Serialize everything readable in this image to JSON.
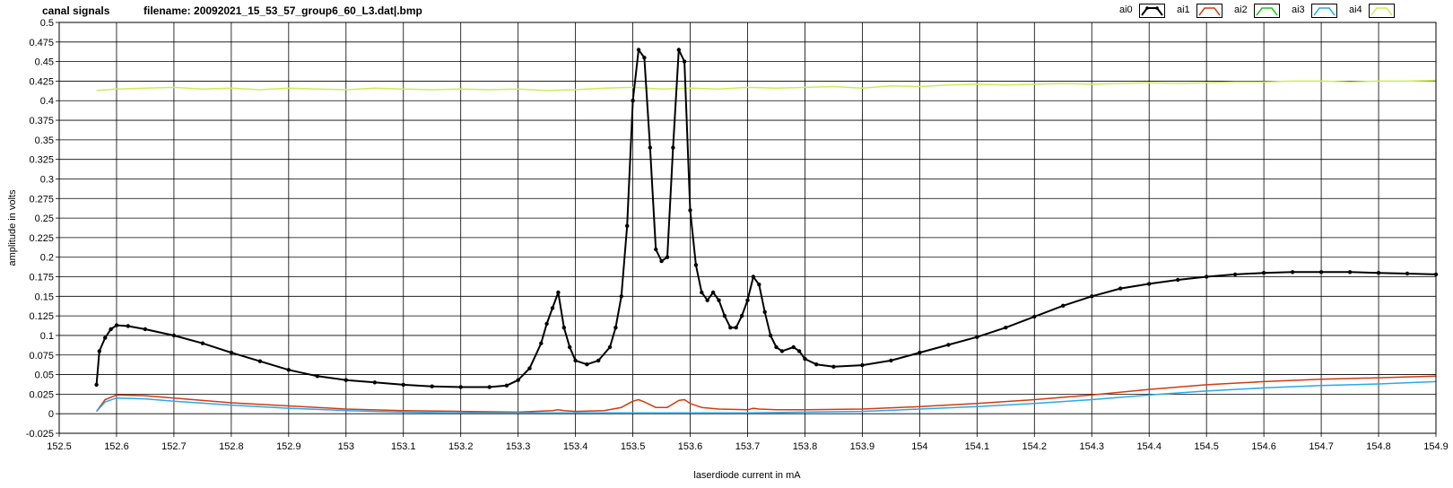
{
  "header": {
    "title": "canal signals",
    "filename": "filename: 20092021_15_53_57_group6_60_L3.dat|.bmp"
  },
  "legend": [
    {
      "name": "ai0",
      "color": "#000000",
      "marker": true
    },
    {
      "name": "ai1",
      "color": "#d03c10",
      "marker": false
    },
    {
      "name": "ai2",
      "color": "#22c020",
      "marker": false
    },
    {
      "name": "ai3",
      "color": "#2aa8e8",
      "marker": false
    },
    {
      "name": "ai4",
      "color": "#c8ee5a",
      "marker": false
    }
  ],
  "chart_data": {
    "type": "line",
    "title": "",
    "xlabel": "laserdiode current in mA",
    "ylabel": "amplitude in volts",
    "xlim": [
      152.5,
      154.9
    ],
    "ylim": [
      -0.025,
      0.5
    ],
    "xticks": [
      "152.5",
      "152.6",
      "152.7",
      "152.8",
      "152.9",
      "153",
      "153.1",
      "153.2",
      "153.3",
      "153.4",
      "153.5",
      "153.6",
      "153.7",
      "153.8",
      "153.9",
      "154",
      "154.1",
      "154.2",
      "154.3",
      "154.4",
      "154.5",
      "154.6",
      "154.7",
      "154.8",
      "154.9"
    ],
    "yticks": [
      "0.5",
      "0.475",
      "0.45",
      "0.425",
      "0.4",
      "0.375",
      "0.35",
      "0.325",
      "0.3",
      "0.275",
      "0.25",
      "0.225",
      "0.2",
      "0.175",
      "0.15",
      "0.125",
      "0.1",
      "0.075",
      "0.05",
      "0.025",
      "0",
      "-0.025"
    ],
    "grid": true,
    "series": [
      {
        "name": "ai0",
        "color": "#000000",
        "marker": true,
        "x": [
          152.565,
          152.57,
          152.58,
          152.59,
          152.6,
          152.62,
          152.65,
          152.7,
          152.75,
          152.8,
          152.85,
          152.9,
          152.95,
          153.0,
          153.05,
          153.1,
          153.15,
          153.2,
          153.25,
          153.28,
          153.3,
          153.32,
          153.34,
          153.35,
          153.36,
          153.37,
          153.38,
          153.39,
          153.4,
          153.42,
          153.44,
          153.46,
          153.47,
          153.48,
          153.49,
          153.5,
          153.51,
          153.52,
          153.53,
          153.54,
          153.55,
          153.56,
          153.57,
          153.58,
          153.59,
          153.6,
          153.61,
          153.62,
          153.63,
          153.64,
          153.65,
          153.66,
          153.67,
          153.68,
          153.69,
          153.7,
          153.71,
          153.72,
          153.73,
          153.74,
          153.75,
          153.76,
          153.78,
          153.79,
          153.8,
          153.82,
          153.85,
          153.9,
          153.95,
          154.0,
          154.05,
          154.1,
          154.15,
          154.2,
          154.25,
          154.3,
          154.35,
          154.4,
          154.45,
          154.5,
          154.55,
          154.6,
          154.65,
          154.7,
          154.75,
          154.8,
          154.85,
          154.9
        ],
        "y": [
          0.037,
          0.08,
          0.097,
          0.108,
          0.113,
          0.112,
          0.108,
          0.1,
          0.09,
          0.078,
          0.067,
          0.056,
          0.048,
          0.043,
          0.04,
          0.037,
          0.035,
          0.034,
          0.034,
          0.036,
          0.043,
          0.058,
          0.09,
          0.115,
          0.135,
          0.155,
          0.11,
          0.085,
          0.068,
          0.063,
          0.068,
          0.085,
          0.11,
          0.15,
          0.24,
          0.4,
          0.465,
          0.455,
          0.34,
          0.21,
          0.195,
          0.2,
          0.34,
          0.465,
          0.45,
          0.26,
          0.19,
          0.155,
          0.145,
          0.155,
          0.145,
          0.125,
          0.11,
          0.11,
          0.125,
          0.145,
          0.175,
          0.165,
          0.13,
          0.1,
          0.085,
          0.08,
          0.085,
          0.08,
          0.07,
          0.063,
          0.06,
          0.062,
          0.068,
          0.078,
          0.088,
          0.098,
          0.11,
          0.124,
          0.138,
          0.15,
          0.16,
          0.166,
          0.171,
          0.175,
          0.178,
          0.18,
          0.181,
          0.181,
          0.181,
          0.18,
          0.179,
          0.178
        ]
      },
      {
        "name": "ai1",
        "color": "#d03c10",
        "marker": false,
        "x": [
          152.565,
          152.58,
          152.6,
          152.65,
          152.7,
          152.8,
          152.9,
          153.0,
          153.1,
          153.2,
          153.3,
          153.36,
          153.37,
          153.38,
          153.4,
          153.45,
          153.48,
          153.5,
          153.51,
          153.52,
          153.54,
          153.56,
          153.58,
          153.59,
          153.6,
          153.62,
          153.65,
          153.7,
          153.71,
          153.72,
          153.75,
          153.8,
          153.9,
          154.0,
          154.1,
          154.2,
          154.3,
          154.4,
          154.5,
          154.6,
          154.7,
          154.8,
          154.9
        ],
        "y": [
          0.003,
          0.018,
          0.024,
          0.023,
          0.02,
          0.014,
          0.01,
          0.006,
          0.004,
          0.003,
          0.002,
          0.004,
          0.005,
          0.004,
          0.003,
          0.004,
          0.008,
          0.016,
          0.018,
          0.015,
          0.008,
          0.008,
          0.017,
          0.018,
          0.013,
          0.008,
          0.006,
          0.005,
          0.007,
          0.006,
          0.005,
          0.005,
          0.006,
          0.009,
          0.013,
          0.018,
          0.024,
          0.031,
          0.037,
          0.041,
          0.044,
          0.046,
          0.048
        ]
      },
      {
        "name": "ai2",
        "color": "#22c020",
        "marker": false,
        "x": [],
        "y": []
      },
      {
        "name": "ai3",
        "color": "#2aa8e8",
        "marker": false,
        "x": [
          152.565,
          152.58,
          152.6,
          152.65,
          152.7,
          152.8,
          152.9,
          153.0,
          153.1,
          153.2,
          153.3,
          153.4,
          153.5,
          153.6,
          153.7,
          153.8,
          153.9,
          154.0,
          154.1,
          154.2,
          154.3,
          154.4,
          154.5,
          154.6,
          154.7,
          154.8,
          154.9
        ],
        "y": [
          0.003,
          0.015,
          0.02,
          0.019,
          0.016,
          0.011,
          0.007,
          0.004,
          0.002,
          0.001,
          0.001,
          0.001,
          0.001,
          0.001,
          0.001,
          0.002,
          0.003,
          0.006,
          0.009,
          0.013,
          0.018,
          0.024,
          0.029,
          0.033,
          0.036,
          0.038,
          0.041
        ]
      },
      {
        "name": "ai4",
        "color": "#c8ee5a",
        "marker": false,
        "x": [
          152.565,
          152.6,
          152.65,
          152.7,
          152.75,
          152.8,
          152.85,
          152.9,
          152.95,
          153.0,
          153.05,
          153.1,
          153.15,
          153.2,
          153.25,
          153.3,
          153.35,
          153.4,
          153.45,
          153.5,
          153.55,
          153.6,
          153.65,
          153.7,
          153.75,
          153.8,
          153.85,
          153.9,
          153.95,
          154.0,
          154.05,
          154.1,
          154.15,
          154.2,
          154.25,
          154.3,
          154.35,
          154.4,
          154.45,
          154.5,
          154.55,
          154.6,
          154.65,
          154.7,
          154.75,
          154.8,
          154.85,
          154.9
        ],
        "y": [
          0.413,
          0.415,
          0.416,
          0.417,
          0.415,
          0.416,
          0.414,
          0.416,
          0.415,
          0.414,
          0.416,
          0.415,
          0.414,
          0.415,
          0.414,
          0.415,
          0.413,
          0.414,
          0.416,
          0.417,
          0.415,
          0.416,
          0.415,
          0.417,
          0.416,
          0.417,
          0.418,
          0.416,
          0.419,
          0.418,
          0.42,
          0.421,
          0.42,
          0.421,
          0.422,
          0.421,
          0.422,
          0.423,
          0.422,
          0.423,
          0.424,
          0.424,
          0.425,
          0.425,
          0.424,
          0.425,
          0.425,
          0.426
        ]
      }
    ]
  }
}
